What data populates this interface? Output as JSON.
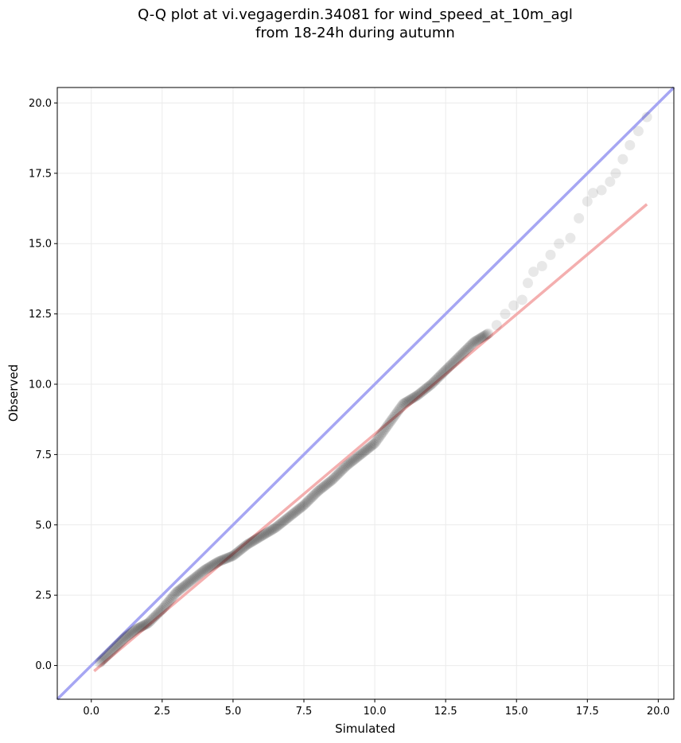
{
  "chart_data": {
    "type": "scatter",
    "title_line1": "Q-Q plot at vi.vegagerdin.34081 for wind_speed_at_10m_agl",
    "title_line2": "from 18-24h during autumn",
    "xlabel": "Simulated",
    "ylabel": "Observed",
    "xlim": [
      -1.2,
      20.55
    ],
    "ylim": [
      -1.2,
      20.55
    ],
    "xticks": [
      "0.0",
      "2.5",
      "5.0",
      "7.5",
      "10.0",
      "12.5",
      "15.0",
      "17.5",
      "20.0"
    ],
    "yticks": [
      "0.0",
      "2.5",
      "5.0",
      "7.5",
      "10.0",
      "12.5",
      "15.0",
      "17.5",
      "20.0"
    ],
    "grid": true,
    "colors": {
      "points": "#000000",
      "identity_line": "#a6a6f3",
      "fit_line": "#f3a6a6"
    },
    "identity_line": {
      "x": [
        -1.2,
        20.55
      ],
      "y": [
        -1.2,
        20.55
      ]
    },
    "fit_line": {
      "x": [
        0.1,
        19.6
      ],
      "y": [
        -0.2,
        16.4
      ]
    },
    "series_quantiles": {
      "x": [
        0.3,
        0.5,
        0.8,
        1.2,
        1.6,
        2.0,
        2.5,
        3.0,
        3.5,
        4.0,
        4.5,
        5.0,
        5.5,
        6.0,
        6.5,
        7.0,
        7.5,
        8.0,
        8.5,
        9.0,
        9.5,
        10.0,
        10.5,
        11.0,
        11.5,
        12.0,
        12.5,
        13.0,
        13.5,
        14.0,
        14.3,
        14.6,
        14.9,
        15.2,
        15.4,
        15.6,
        15.9,
        16.2,
        16.5,
        16.9,
        17.2,
        17.5,
        17.7,
        18.0,
        18.3,
        18.5,
        19.0,
        19.6
      ],
      "y": [
        0.1,
        0.3,
        0.6,
        1.0,
        1.3,
        1.5,
        2.0,
        2.6,
        3.0,
        3.4,
        3.7,
        3.9,
        4.3,
        4.6,
        4.9,
        5.3,
        5.7,
        6.2,
        6.6,
        7.1,
        7.5,
        7.9,
        8.6,
        9.3,
        9.6,
        10.0,
        10.5,
        11.0,
        11.5,
        11.8,
        12.1,
        12.5,
        12.8,
        13.0,
        13.6,
        14.0,
        14.2,
        14.6,
        15.0,
        15.2,
        15.9,
        16.5,
        16.8,
        16.9,
        17.2,
        17.5,
        18.5,
        19.5
      ]
    }
  }
}
